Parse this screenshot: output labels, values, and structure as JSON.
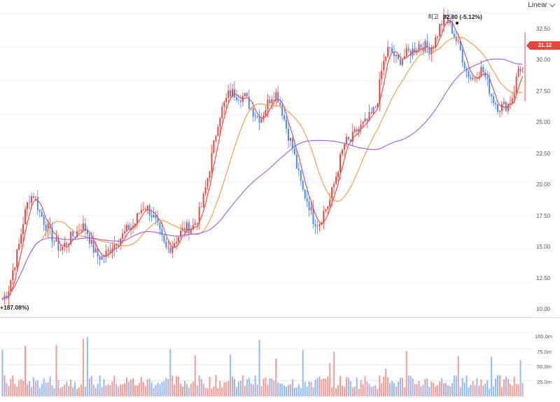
{
  "toolbar": {
    "scale_label": "Linear"
  },
  "price_axis": {
    "ticks": [
      "32.50",
      "30.00",
      "27.50",
      "25.00",
      "22.50",
      "20.00",
      "17.50",
      "15.00",
      "12.50",
      "10.00"
    ]
  },
  "volume_axis": {
    "ticks": [
      "100.0m",
      "75.0m",
      "50.0m",
      "25.0m"
    ]
  },
  "last_price": {
    "value": "31.12"
  },
  "high_marker": {
    "prefix": "최고",
    "value_text": "32.80 (-5.12%)"
  },
  "low_marker": {
    "text": "+187.08%)"
  },
  "colors": {
    "up": "#e8453c",
    "down": "#3d8bfd",
    "ma_short": "#e8453c",
    "ma_mid": "#f5963c",
    "ma_long": "#a15ce8",
    "grid": "#ececec"
  },
  "chart_data": {
    "type": "candlestick",
    "price_range": [
      10,
      33
    ],
    "volume_range_m": [
      0,
      115
    ],
    "price_ticks": [
      32.5,
      30,
      27.5,
      25,
      22.5,
      20,
      17.5,
      15,
      12.5,
      10
    ],
    "volume_ticks_m": [
      100,
      75,
      50,
      25
    ],
    "last_price": 31.12,
    "period_high": 32.8,
    "period_high_change_pct": -5.12,
    "low_change_pct": 187.08,
    "num_bars": 252,
    "price_path": [
      [
        0,
        11.3
      ],
      [
        6,
        11.8
      ],
      [
        12,
        13.5
      ],
      [
        18,
        15.0
      ],
      [
        24,
        17.2
      ],
      [
        30,
        18.8
      ],
      [
        36,
        19.1
      ],
      [
        42,
        17.8
      ],
      [
        48,
        17.0
      ],
      [
        54,
        16.2
      ],
      [
        60,
        15.5
      ],
      [
        66,
        15.0
      ],
      [
        72,
        15.4
      ],
      [
        78,
        15.9
      ],
      [
        84,
        16.2
      ],
      [
        90,
        16.8
      ],
      [
        96,
        16.4
      ],
      [
        102,
        15.2
      ],
      [
        108,
        14.5
      ],
      [
        114,
        14.4
      ],
      [
        120,
        14.8
      ],
      [
        126,
        15.4
      ],
      [
        132,
        15.7
      ],
      [
        138,
        16.1
      ],
      [
        144,
        16.6
      ],
      [
        150,
        16.8
      ],
      [
        156,
        17.8
      ],
      [
        162,
        18.3
      ],
      [
        168,
        17.8
      ],
      [
        174,
        17.1
      ],
      [
        180,
        16.0
      ],
      [
        186,
        15.0
      ],
      [
        192,
        15.2
      ],
      [
        198,
        15.8
      ],
      [
        204,
        16.3
      ],
      [
        210,
        16.6
      ],
      [
        216,
        16.6
      ],
      [
        222,
        17.3
      ],
      [
        228,
        18.5
      ],
      [
        234,
        20.5
      ],
      [
        240,
        22.5
      ],
      [
        246,
        24.8
      ],
      [
        252,
        25.7
      ],
      [
        258,
        26.6
      ],
      [
        264,
        26.6
      ],
      [
        270,
        26.4
      ],
      [
        276,
        26.3
      ],
      [
        282,
        25.6
      ],
      [
        288,
        25.0
      ],
      [
        294,
        24.7
      ],
      [
        300,
        25.6
      ],
      [
        306,
        26.4
      ],
      [
        312,
        26.6
      ],
      [
        318,
        25.4
      ],
      [
        324,
        23.8
      ],
      [
        330,
        22.6
      ],
      [
        336,
        20.8
      ],
      [
        342,
        19.3
      ],
      [
        348,
        18.5
      ],
      [
        354,
        17.2
      ],
      [
        360,
        16.9
      ],
      [
        366,
        17.8
      ],
      [
        372,
        18.5
      ],
      [
        378,
        20.0
      ],
      [
        384,
        21.6
      ],
      [
        390,
        23.0
      ],
      [
        396,
        23.0
      ],
      [
        402,
        23.7
      ],
      [
        408,
        24.1
      ],
      [
        414,
        24.4
      ],
      [
        420,
        25.0
      ],
      [
        426,
        25.8
      ],
      [
        432,
        28.4
      ],
      [
        438,
        29.8
      ],
      [
        444,
        29.6
      ],
      [
        450,
        28.9
      ],
      [
        456,
        29.3
      ],
      [
        462,
        29.6
      ],
      [
        468,
        29.8
      ],
      [
        474,
        30.2
      ],
      [
        480,
        30.1
      ],
      [
        486,
        29.9
      ],
      [
        492,
        30.4
      ],
      [
        498,
        31.6
      ],
      [
        504,
        32.2
      ],
      [
        510,
        31.6
      ],
      [
        516,
        30.6
      ],
      [
        522,
        29.6
      ],
      [
        528,
        28.3
      ],
      [
        534,
        27.6
      ],
      [
        540,
        28.1
      ],
      [
        546,
        28.4
      ],
      [
        552,
        27.3
      ],
      [
        558,
        26.2
      ],
      [
        564,
        25.6
      ],
      [
        570,
        25.6
      ],
      [
        576,
        25.8
      ],
      [
        582,
        26.6
      ],
      [
        588,
        28.7
      ],
      [
        592,
        28.1
      ]
    ]
  }
}
